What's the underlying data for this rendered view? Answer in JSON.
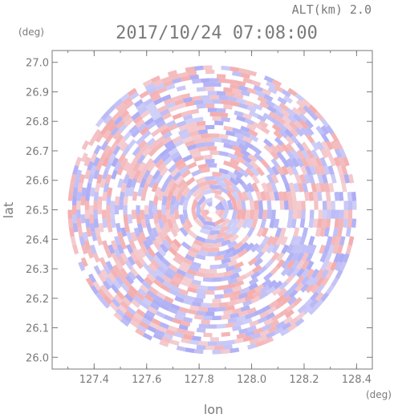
{
  "chart_data": {
    "type": "heatmap",
    "title": "2017/10/24 07:08:00",
    "altitude_label": "ALT(km) 2.0",
    "xlabel": "lon",
    "ylabel": "lat",
    "x_unit": "(deg)",
    "y_unit": "(deg)",
    "xlim": [
      127.24,
      128.46
    ],
    "ylim": [
      25.96,
      27.04
    ],
    "x_ticks": [
      "127.4",
      "127.6",
      "127.8",
      "128.0",
      "128.2",
      "128.4"
    ],
    "y_ticks": [
      "26.0",
      "26.1",
      "26.2",
      "26.3",
      "26.4",
      "26.5",
      "26.6",
      "26.7",
      "26.8",
      "26.9",
      "27.0"
    ],
    "center": {
      "lon": 127.85,
      "lat": 26.5
    },
    "radius_deg_lat": 0.49,
    "colors": {
      "positive": "#f4a8a8",
      "negative": "#a8a8f4",
      "neutral": "#ffffff",
      "axis": "#7a7a7a"
    },
    "grid": false,
    "legend": "none"
  }
}
